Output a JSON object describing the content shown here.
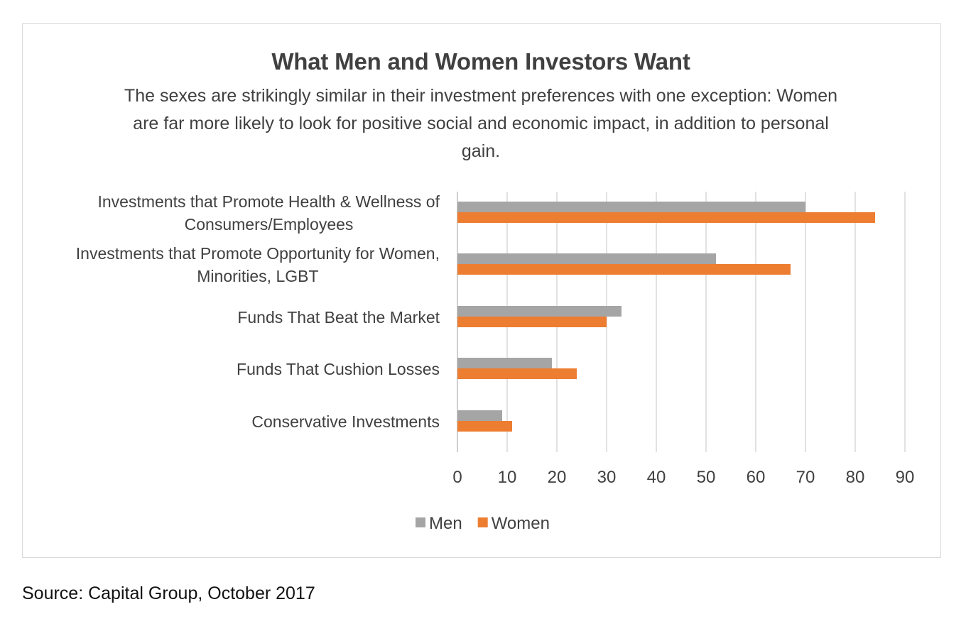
{
  "chart_data": {
    "type": "bar",
    "orientation": "horizontal",
    "title": "What Men and Women Investors Want",
    "subtitle": "The sexes are strikingly similar in their investment preferences with one exception: Women are far more likely to look for positive social and economic impact, in addition to personal gain.",
    "categories": [
      [
        "Investments that Promote Health & Wellness of",
        "Consumers/Employees"
      ],
      [
        "Investments that Promote Opportunity for Women,",
        "Minorities, LGBT"
      ],
      [
        "Funds That Beat the Market"
      ],
      [
        "Funds That Cushion Losses"
      ],
      [
        "Conservative Investments"
      ]
    ],
    "series": [
      {
        "name": "Men",
        "color": "#a5a5a5",
        "values": [
          70,
          52,
          33,
          19,
          9
        ]
      },
      {
        "name": "Women",
        "color": "#ed7d31",
        "values": [
          84,
          67,
          30,
          24,
          11
        ]
      }
    ],
    "xlim": [
      0,
      90
    ],
    "xticks": [
      0,
      10,
      20,
      30,
      40,
      50,
      60,
      70,
      80,
      90
    ],
    "grid": "vertical",
    "legend_position": "bottom"
  },
  "source": "Source: Capital Group, October 2017"
}
